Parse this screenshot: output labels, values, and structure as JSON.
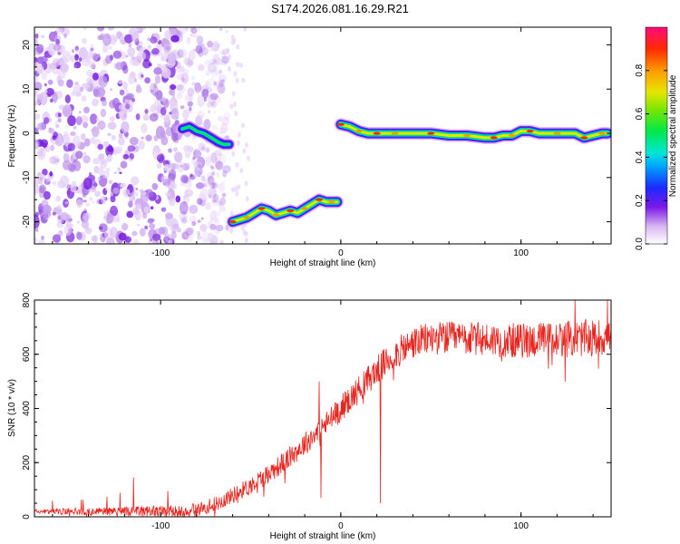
{
  "title": "S174.2026.081.16.29.R21",
  "chart_data": [
    {
      "type": "heatmap",
      "xlabel": "Height of straight line (km)",
      "ylabel": "Frequency (Hz)",
      "xlim": [
        -170,
        150
      ],
      "ylim": [
        -25,
        24
      ],
      "xticks": [
        -100,
        0,
        100
      ],
      "xtick_labels": [
        "-100",
        "0",
        "100"
      ],
      "yticks": [
        20,
        10,
        0,
        -10,
        -20
      ],
      "ytick_labels": [
        "20",
        "10",
        "0",
        "-10",
        "-20"
      ],
      "colorbar": {
        "label": "Normalized spectral amplitude",
        "ticks": [
          0.0,
          0.2,
          0.4,
          0.6,
          0.8
        ],
        "tick_labels": [
          "0.0",
          "0.2",
          "0.4",
          "0.6",
          "0.8"
        ],
        "range": [
          0,
          1
        ]
      },
      "noise_region": {
        "x": [
          -170,
          -75
        ],
        "note": "purple speckle noise across all frequencies"
      },
      "ridges": [
        {
          "name": "ridge-1",
          "x": [
            -88,
            -84,
            -80,
            -76,
            -72,
            -68,
            -65,
            -63,
            -62
          ],
          "y": [
            1,
            1.5,
            0.5,
            0,
            -1,
            -2,
            -2.5,
            -2.5,
            -2.5
          ],
          "peak": 0.5
        },
        {
          "name": "ridge-2",
          "x": [
            -60,
            -56,
            -52,
            -48,
            -44,
            -40,
            -36,
            -32,
            -28,
            -24,
            -20,
            -16,
            -12,
            -8,
            -5,
            -2
          ],
          "y": [
            -20,
            -19.5,
            -19,
            -18,
            -17,
            -17.5,
            -18.5,
            -18,
            -17.5,
            -18,
            -17,
            -16,
            -15,
            -15.5,
            -15.5,
            -15.5
          ],
          "peak": 0.85
        },
        {
          "name": "ridge-3",
          "x": [
            0,
            5,
            10,
            15,
            20,
            25,
            30,
            40,
            50,
            60,
            70,
            80,
            85,
            90,
            95,
            100,
            105,
            110,
            120,
            130,
            135,
            140,
            145,
            148
          ],
          "y": [
            2,
            1.5,
            0.5,
            0,
            0,
            0,
            0,
            0,
            0,
            -0.5,
            -0.5,
            -1,
            -1,
            -0.5,
            -0.5,
            0.5,
            0.5,
            0,
            0,
            0,
            -1,
            -0.5,
            0,
            0
          ],
          "peak": 0.95
        }
      ]
    },
    {
      "type": "line",
      "xlabel": "Height of straight line (km)",
      "ylabel": "SNR (10 * v/v)",
      "xlim": [
        -170,
        150
      ],
      "ylim": [
        0,
        800
      ],
      "xticks": [
        -100,
        0,
        100
      ],
      "xtick_labels": [
        "-100",
        "0",
        "100"
      ],
      "yticks": [
        0,
        200,
        400,
        600,
        800
      ],
      "ytick_labels": [
        "0",
        "200",
        "400",
        "600",
        "800"
      ],
      "color": "#e8251f",
      "trend": {
        "x": [
          -170,
          -140,
          -110,
          -90,
          -80,
          -70,
          -60,
          -50,
          -40,
          -30,
          -20,
          -10,
          0,
          10,
          20,
          30,
          40,
          50,
          60,
          80,
          100,
          120,
          140,
          150
        ],
        "y": [
          20,
          20,
          20,
          20,
          25,
          45,
          80,
          115,
          160,
          210,
          270,
          330,
          400,
          470,
          540,
          600,
          640,
          660,
          660,
          655,
          650,
          655,
          660,
          665
        ]
      },
      "noise_amplitude": {
        "x": [
          -170,
          -60,
          0,
          40,
          150
        ],
        "y": [
          8,
          30,
          50,
          60,
          70
        ]
      },
      "spikes": [
        {
          "x": -12,
          "y": 500
        },
        {
          "x": -11,
          "y": 70
        },
        {
          "x": 22,
          "y": 50
        },
        {
          "x": -160,
          "y": 60
        },
        {
          "x": -115,
          "y": 145
        },
        {
          "x": 130,
          "y": 800
        },
        {
          "x": 148,
          "y": 800
        }
      ]
    }
  ]
}
